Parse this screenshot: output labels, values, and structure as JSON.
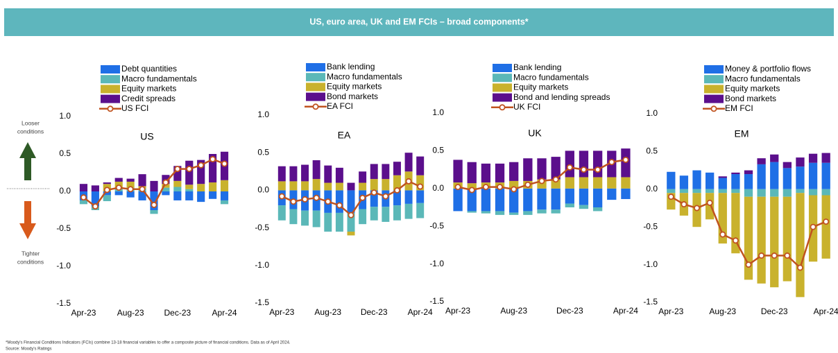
{
  "header": {
    "title": "US, euro area, UK and EM FCIs – broad components*"
  },
  "side_labels": {
    "looser": [
      "Looser",
      "conditions"
    ],
    "tighter": [
      "Tighter",
      "conditions"
    ]
  },
  "footnote": "*Moody's Financial Conditions Indicators (FCIs) combine 13-18 financial variables to offer a composite picture of financial conditions. Data as of April 2024.",
  "source": "Source: Moody's Ratings",
  "chart_data": [
    {
      "type": "bar",
      "stacked": true,
      "title": "US",
      "categories": [
        "Apr-23",
        null,
        null,
        null,
        "Aug-23",
        null,
        null,
        null,
        "Dec-23",
        null,
        null,
        null,
        "Apr-24"
      ],
      "series": [
        {
          "name": "Debt quantities",
          "color": "#1f6fe6",
          "values": [
            -0.12,
            -0.2,
            -0.05,
            -0.05,
            -0.08,
            -0.12,
            -0.25,
            -0.05,
            -0.12,
            -0.12,
            -0.14,
            -0.1,
            -0.12
          ]
        },
        {
          "name": "Macro fundamentals",
          "color": "#5bb8b8",
          "values": [
            -0.05,
            -0.05,
            -0.08,
            0.05,
            0.05,
            0.04,
            -0.05,
            0.05,
            0.06,
            0.03,
            0.0,
            0.0,
            -0.05
          ]
        },
        {
          "name": "Equity markets",
          "color": "#c9b22d",
          "values": [
            0.0,
            0.0,
            0.1,
            0.08,
            0.08,
            0.03,
            0.0,
            0.05,
            0.08,
            0.06,
            0.1,
            0.12,
            0.15
          ]
        },
        {
          "name": "Credit spreads",
          "color": "#5b0f8c",
          "values": [
            0.1,
            0.08,
            0.02,
            0.05,
            0.04,
            0.16,
            0.14,
            0.12,
            0.2,
            0.32,
            0.32,
            0.38,
            0.38
          ]
        },
        {
          "name": "US FCI",
          "color": "#c0531f",
          "type": "line",
          "values": [
            -0.08,
            -0.2,
            0.02,
            0.05,
            0.03,
            0.03,
            -0.18,
            0.12,
            0.3,
            0.3,
            0.35,
            0.43,
            0.37
          ]
        }
      ],
      "ylim": [
        -1.5,
        1.0
      ],
      "yticks": [
        {
          "value": 1.0,
          "label": "1.0"
        },
        0.5,
        {
          "value": 0.0,
          "label": "0.0"
        },
        -0.5,
        {
          "value": -1.0,
          "label": "-1.0"
        },
        -1.5
      ]
    },
    {
      "type": "bar",
      "stacked": true,
      "title": "EA",
      "categories": [
        "Apr-23",
        null,
        null,
        null,
        "Aug-23",
        null,
        null,
        null,
        "Dec-23",
        null,
        null,
        null,
        "Apr-24"
      ],
      "series": [
        {
          "name": "Bank lending",
          "color": "#1f6fe6",
          "values": [
            -0.2,
            -0.25,
            -0.27,
            -0.27,
            -0.3,
            -0.3,
            -0.3,
            -0.25,
            -0.22,
            -0.22,
            -0.2,
            -0.18,
            -0.17
          ]
        },
        {
          "name": "Macro fundamentals",
          "color": "#5bb8b8",
          "values": [
            -0.2,
            -0.2,
            -0.2,
            -0.22,
            -0.25,
            -0.25,
            -0.25,
            -0.2,
            -0.18,
            -0.2,
            -0.2,
            -0.2,
            -0.2
          ]
        },
        {
          "name": "Equity markets",
          "color": "#c9b22d",
          "values": [
            0.12,
            0.12,
            0.12,
            0.15,
            0.1,
            0.1,
            -0.05,
            0.1,
            0.15,
            0.15,
            0.2,
            0.25,
            0.2
          ]
        },
        {
          "name": "Bond markets",
          "color": "#5b0f8c",
          "values": [
            0.2,
            0.2,
            0.22,
            0.25,
            0.23,
            0.2,
            0.1,
            0.15,
            0.2,
            0.2,
            0.18,
            0.25,
            0.25
          ]
        },
        {
          "name": "EA FCI",
          "color": "#c0531f",
          "type": "line",
          "values": [
            -0.08,
            -0.15,
            -0.12,
            -0.1,
            -0.15,
            -0.2,
            -0.33,
            -0.1,
            -0.03,
            -0.08,
            0.0,
            0.12,
            0.05
          ]
        }
      ],
      "ylim": [
        -1.5,
        1.0
      ],
      "yticks": [
        {
          "value": 1.0,
          "label": "1.0"
        },
        0.5,
        {
          "value": 0.0,
          "label": "0.0"
        },
        -0.5,
        {
          "value": -1.0,
          "label": "-1.0"
        },
        -1.5
      ]
    },
    {
      "type": "bar",
      "stacked": true,
      "title": "UK",
      "categories": [
        "Apr-23",
        null,
        null,
        null,
        "Aug-23",
        null,
        null,
        null,
        "Dec-23",
        null,
        null,
        null,
        "Apr-24"
      ],
      "series": [
        {
          "name": "Bank lending",
          "color": "#1f6fe6",
          "values": [
            -0.3,
            -0.3,
            -0.3,
            -0.3,
            -0.32,
            -0.3,
            -0.28,
            -0.28,
            -0.2,
            -0.22,
            -0.25,
            -0.15,
            -0.14
          ]
        },
        {
          "name": "Macro fundamentals",
          "color": "#5bb8b8",
          "values": [
            0.0,
            -0.02,
            -0.03,
            -0.05,
            -0.03,
            -0.05,
            -0.05,
            -0.05,
            -0.05,
            -0.05,
            -0.05,
            0.0,
            0.0
          ]
        },
        {
          "name": "Equity markets",
          "color": "#c9b22d",
          "values": [
            0.08,
            0.07,
            0.08,
            0.08,
            0.1,
            0.1,
            0.12,
            0.12,
            0.15,
            0.15,
            0.15,
            0.15,
            0.15
          ]
        },
        {
          "name": "Bond and lending spreads",
          "color": "#5b0f8c",
          "values": [
            0.3,
            0.28,
            0.25,
            0.25,
            0.25,
            0.3,
            0.28,
            0.3,
            0.35,
            0.35,
            0.35,
            0.35,
            0.38
          ]
        },
        {
          "name": "UK FCI",
          "color": "#c0531f",
          "type": "line",
          "values": [
            0.02,
            -0.02,
            0.02,
            0.02,
            -0.01,
            0.05,
            0.1,
            0.12,
            0.28,
            0.25,
            0.25,
            0.35,
            0.38
          ]
        }
      ],
      "ylim": [
        -1.5,
        1.0
      ],
      "yticks": [
        {
          "value": 1.0,
          "label": "1.0"
        },
        0.5,
        {
          "value": 0.0,
          "label": "0.0"
        },
        -0.5,
        {
          "value": -1.0,
          "label": "-1.0"
        },
        -1.5
      ]
    },
    {
      "type": "bar",
      "stacked": true,
      "title": "EM",
      "categories": [
        "Apr-23",
        null,
        null,
        null,
        "Aug-23",
        null,
        null,
        null,
        "Dec-23",
        null,
        null,
        null,
        "Apr-24"
      ],
      "series": [
        {
          "name": "Money & portfolio flows",
          "color": "#1f6fe6",
          "values": [
            0.23,
            0.18,
            0.25,
            0.22,
            0.15,
            0.2,
            0.2,
            0.33,
            0.36,
            0.28,
            0.3,
            0.35,
            0.35
          ]
        },
        {
          "name": "Macro fundamentals",
          "color": "#5bb8b8",
          "values": [
            -0.05,
            -0.05,
            -0.05,
            -0.05,
            -0.05,
            -0.05,
            -0.1,
            -0.1,
            -0.1,
            -0.1,
            -0.05,
            -0.08,
            -0.08
          ]
        },
        {
          "name": "Equity markets",
          "color": "#c9b22d",
          "values": [
            -0.22,
            -0.3,
            -0.45,
            -0.35,
            -0.67,
            -0.8,
            -1.1,
            -1.15,
            -1.2,
            -1.12,
            -1.38,
            -0.88,
            -0.84
          ]
        },
        {
          "name": "Bond markets",
          "color": "#5b0f8c",
          "values": [
            0.0,
            0.0,
            0.0,
            0.0,
            0.02,
            0.02,
            0.05,
            0.08,
            0.1,
            0.08,
            0.12,
            0.12,
            0.13
          ]
        },
        {
          "name": "EM FCI",
          "color": "#c0531f",
          "type": "line",
          "values": [
            -0.1,
            -0.2,
            -0.25,
            -0.18,
            -0.6,
            -0.68,
            -1.0,
            -0.88,
            -0.88,
            -0.88,
            -1.04,
            -0.5,
            -0.43
          ]
        }
      ],
      "ylim": [
        -1.5,
        1.0
      ],
      "yticks": [
        {
          "value": 1.0,
          "label": "1.0"
        },
        0.5,
        {
          "value": 0.0,
          "label": "0.0"
        },
        -0.5,
        {
          "value": -1.0,
          "label": "-1.0"
        },
        -1.5
      ]
    }
  ]
}
